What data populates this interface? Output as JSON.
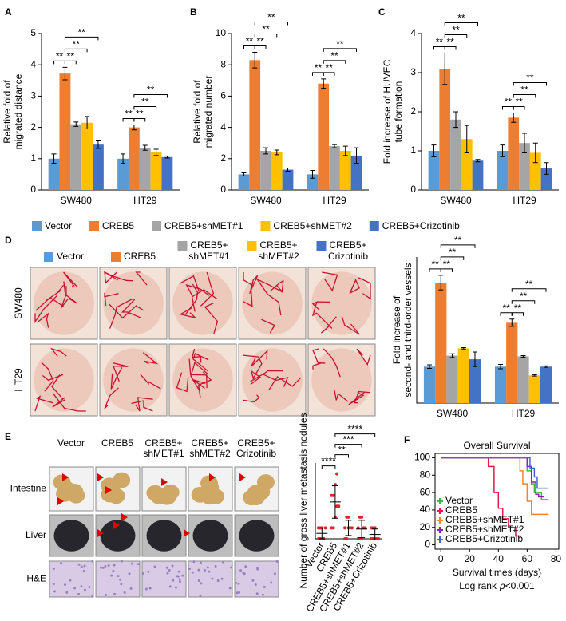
{
  "panel_labels": [
    "A",
    "B",
    "C",
    "D",
    "E",
    "F"
  ],
  "photos_d": {
    "columns": [
      [
        "Vector"
      ],
      [
        "CREB5"
      ],
      [
        "CREB5+",
        "shMET#1"
      ],
      [
        "CREB5+",
        "shMET#2"
      ],
      [
        "CREB5+",
        "Crizotinib"
      ]
    ],
    "rows": [
      "SW480",
      "HT29"
    ]
  },
  "photos_e": {
    "columns": [
      [
        "Vector"
      ],
      [
        "CREB5"
      ],
      [
        "CREB5+",
        "shMET#1"
      ],
      [
        "CREB5+",
        "shMET#2"
      ],
      [
        "CREB5+",
        "Crizotinib"
      ]
    ],
    "rows": [
      "Intestine",
      "Liver",
      "H&E"
    ]
  },
  "chart_data": [
    {
      "type": "bar",
      "ylabel": [
        "Relative fold of",
        "migrated distance"
      ],
      "categories": [
        "SW480",
        "HT29"
      ],
      "ylim": [
        0,
        5
      ],
      "yticks": [
        0,
        1,
        2,
        3,
        4,
        5
      ],
      "series": [
        {
          "name": "Vector",
          "color": "#5b9bd5",
          "values": [
            1.0,
            1.0
          ],
          "errors": [
            0.15,
            0.15
          ]
        },
        {
          "name": "CREB5",
          "color": "#ed7d31",
          "values": [
            3.72,
            2.0
          ],
          "errors": [
            0.2,
            0.08
          ]
        },
        {
          "name": "CREB5+shMET#1",
          "color": "#a5a5a5",
          "values": [
            2.1,
            1.35
          ],
          "errors": [
            0.07,
            0.08
          ]
        },
        {
          "name": "CREB5+shMET#2",
          "color": "#ffc000",
          "values": [
            2.15,
            1.2
          ],
          "errors": [
            0.2,
            0.1
          ]
        },
        {
          "name": "CREB5+Crizotinib",
          "color": "#4472c4",
          "values": [
            1.45,
            1.05
          ],
          "errors": [
            0.12,
            0.03
          ]
        }
      ],
      "annotations": [
        "**",
        "**",
        "**",
        "**",
        "**",
        "**",
        "**",
        "**"
      ]
    },
    {
      "type": "bar",
      "ylabel": [
        "Relative fold of",
        "migrated number"
      ],
      "categories": [
        "SW480",
        "HT29"
      ],
      "ylim": [
        0,
        10
      ],
      "yticks": [
        0,
        2,
        4,
        6,
        8,
        10
      ],
      "series": [
        {
          "name": "Vector",
          "color": "#5b9bd5",
          "values": [
            1.0,
            1.0
          ],
          "errors": [
            0.1,
            0.25
          ]
        },
        {
          "name": "CREB5",
          "color": "#ed7d31",
          "values": [
            8.3,
            6.8
          ],
          "errors": [
            0.5,
            0.3
          ]
        },
        {
          "name": "CREB5+shMET#1",
          "color": "#a5a5a5",
          "values": [
            2.5,
            2.8
          ],
          "errors": [
            0.2,
            0.1
          ]
        },
        {
          "name": "CREB5+shMET#2",
          "color": "#ffc000",
          "values": [
            2.4,
            2.5
          ],
          "errors": [
            0.15,
            0.3
          ]
        },
        {
          "name": "CREB5+Crizotinib",
          "color": "#4472c4",
          "values": [
            1.3,
            2.2
          ],
          "errors": [
            0.1,
            0.5
          ]
        }
      ],
      "annotations": [
        "**",
        "**",
        "**",
        "**",
        "**",
        "**",
        "**",
        "**"
      ]
    },
    {
      "type": "bar",
      "ylabel": [
        "Fold increase of HUVEC",
        "tube formation"
      ],
      "categories": [
        "SW480",
        "HT29"
      ],
      "ylim": [
        0,
        4
      ],
      "yticks": [
        0,
        1,
        2,
        3,
        4
      ],
      "series": [
        {
          "name": "Vector",
          "color": "#5b9bd5",
          "values": [
            1.0,
            1.0
          ],
          "errors": [
            0.15,
            0.15
          ]
        },
        {
          "name": "CREB5",
          "color": "#ed7d31",
          "values": [
            3.1,
            1.85
          ],
          "errors": [
            0.4,
            0.12
          ]
        },
        {
          "name": "CREB5+shMET#1",
          "color": "#a5a5a5",
          "values": [
            1.8,
            1.2
          ],
          "errors": [
            0.2,
            0.25
          ]
        },
        {
          "name": "CREB5+shMET#2",
          "color": "#ffc000",
          "values": [
            1.3,
            0.95
          ],
          "errors": [
            0.35,
            0.25
          ]
        },
        {
          "name": "CREB5+Crizotinib",
          "color": "#4472c4",
          "values": [
            0.75,
            0.55
          ],
          "errors": [
            0.03,
            0.15
          ]
        }
      ],
      "annotations": [
        "**",
        "**",
        "**",
        "**",
        "**",
        "**",
        "**",
        "**"
      ]
    },
    {
      "type": "bar",
      "ylabel": [
        "Fold increase of",
        "second- and third-order vessels"
      ],
      "categories": [
        "SW480",
        "HT29"
      ],
      "ylim": [
        0,
        4
      ],
      "series": [
        {
          "color": "#5b9bd5",
          "values": [
            1.0,
            1.0
          ],
          "errors": [
            0.05,
            0.06
          ]
        },
        {
          "color": "#ed7d31",
          "values": [
            3.3,
            2.2
          ],
          "errors": [
            0.2,
            0.1
          ]
        },
        {
          "color": "#a5a5a5",
          "values": [
            1.3,
            1.28
          ],
          "errors": [
            0.05,
            0.02
          ]
        },
        {
          "color": "#ffc000",
          "values": [
            1.5,
            0.76
          ],
          "errors": [
            0.02,
            0.02
          ]
        },
        {
          "color": "#4472c4",
          "values": [
            1.2,
            1.0
          ],
          "errors": [
            0.2,
            0.02
          ]
        }
      ],
      "annotations": [
        "**",
        "**",
        "**",
        "**",
        "**",
        "**",
        "**",
        "**"
      ]
    },
    {
      "type": "strip",
      "ylabel": [
        "Number of gross liver metastasis nodules"
      ],
      "categories": [
        "Vector",
        "CREB5",
        "CREB5+shMET#1",
        "CREB5+shMET#2",
        "CREB5+Crizotinib"
      ],
      "ylim": [
        0,
        7
      ],
      "color": "#e8222a",
      "points": [
        [
          0,
          0,
          0,
          0,
          1,
          1,
          1,
          1
        ],
        [
          1,
          1,
          2,
          3,
          3,
          4,
          4,
          5,
          6
        ],
        [
          0,
          0,
          1,
          1,
          1,
          1,
          2,
          2
        ],
        [
          0,
          0,
          0,
          1,
          1,
          1,
          2,
          2
        ],
        [
          0,
          0,
          0,
          0,
          0,
          1,
          1,
          1
        ]
      ],
      "values": [
        0.5,
        3.4,
        1.0,
        0.9,
        0.4
      ],
      "errors": [
        0.5,
        1.5,
        0.7,
        0.8,
        0.5
      ],
      "annotations": [
        "****",
        "**",
        "***",
        "****"
      ]
    },
    {
      "type": "line",
      "title": "Overall Survival",
      "xlabel": "Survival times (days)",
      "note": [
        "Log rank",
        "p",
        "<0.001"
      ],
      "xlim": [
        -4,
        82
      ],
      "xticks": [
        0,
        20,
        40,
        60,
        80
      ],
      "ylim": [
        -5,
        105
      ],
      "yticks": [
        0,
        20,
        40,
        60,
        80,
        100
      ],
      "series": [
        {
          "name": "Vector",
          "color": "#3cb44b",
          "x": [
            0,
            60,
            63,
            65,
            70,
            75
          ],
          "values": [
            100,
            85,
            70,
            60,
            52,
            52
          ]
        },
        {
          "name": "CREB5",
          "color": "#e6194b",
          "x": [
            0,
            33,
            37,
            40,
            43,
            47,
            52,
            56
          ],
          "values": [
            100,
            90,
            60,
            42,
            30,
            20,
            10,
            10
          ]
        },
        {
          "name": "CREB5+shMET#1",
          "color": "#f58231",
          "x": [
            0,
            55,
            57,
            60,
            63,
            65,
            75
          ],
          "values": [
            100,
            85,
            70,
            50,
            35,
            35,
            35
          ]
        },
        {
          "name": "CREB5+shMET#2",
          "color": "#911eb4",
          "x": [
            0,
            60,
            63,
            66,
            68,
            72
          ],
          "values": [
            100,
            90,
            72,
            58,
            55,
            55
          ]
        },
        {
          "name": "CREB5+Crizotinib",
          "color": "#4363d8",
          "x": [
            0,
            62,
            65,
            67,
            70,
            75
          ],
          "values": [
            100,
            88,
            78,
            65,
            65,
            65
          ]
        }
      ]
    }
  ]
}
